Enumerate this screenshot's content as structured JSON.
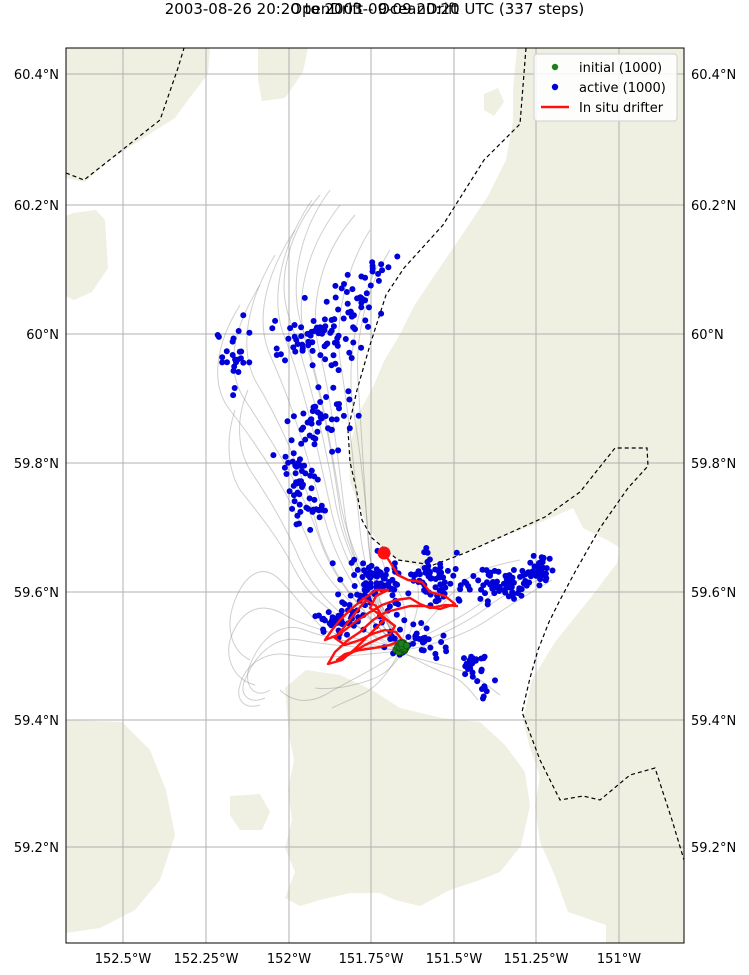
{
  "header": {
    "title_line1": "OpenDrift - OceanDrift",
    "title_line2": "2003-08-26 20:20 to 2003-09-09 20:20 UTC (337 steps)"
  },
  "legend": {
    "initial_label": "initial (1000)",
    "active_label": "active (1000)",
    "drifter_label": "In situ drifter"
  },
  "axes": {
    "lon_ticks": [
      "152.5°W",
      "152.25°W",
      "152°W",
      "151.75°W",
      "151.5°W",
      "151.25°W",
      "151°W"
    ],
    "lat_ticks": [
      "60.4°N",
      "60.2°N",
      "60°N",
      "59.8°N",
      "59.6°N",
      "59.4°N",
      "59.2°N"
    ]
  },
  "colors": {
    "land": "#efefe2",
    "trajectory": "#8c8c8c",
    "initial": "#1f7f1f",
    "active": "#0000d8",
    "drifter": "#ff1010",
    "grid": "#b0b0b0"
  },
  "map": {
    "lon_range": [
      -152.68,
      -150.81
    ],
    "lat_range": [
      59.045,
      60.44
    ],
    "grid": true,
    "legend_position": "top-right"
  }
}
